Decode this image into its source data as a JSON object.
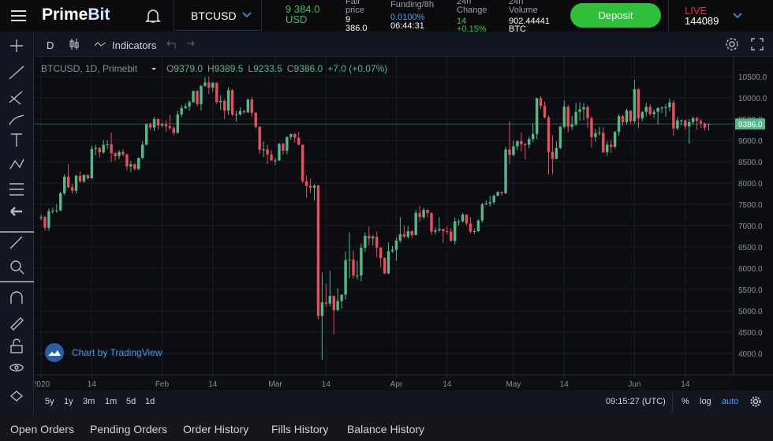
{
  "header": {
    "logo_a": "Prime",
    "logo_b": "Bit",
    "symbol": "BTCUSD",
    "last_price": "9 384.0",
    "last_price_unit": "USD",
    "fair_price_label": "Fair price",
    "fair_price": "9 386.0",
    "funding_label": "Funding/8h",
    "funding_rate": "0.0100%",
    "funding_countdown": "06:44:31",
    "change_label": "24h Change",
    "change": "14",
    "change_pct": "+0.15%",
    "volume_label": "24h Volume",
    "volume": "902.44441",
    "volume_unit": "BTC",
    "deposit": "Deposit",
    "live": "LIVE",
    "live_count": "144089"
  },
  "toolbar": {
    "interval": "D",
    "indicators": "Indicators"
  },
  "legend": {
    "symbol": "BTCUSD, 1D, Primebit",
    "o_label": "O",
    "o": "9379.0",
    "h_label": "H",
    "h": "9389.5",
    "l_label": "L",
    "l": "9233.5",
    "c_label": "C",
    "c": "9386.0",
    "change": "+7.0 (+0.07%)"
  },
  "watermark": "Chart by TradingView",
  "chart_data": {
    "type": "candlestick",
    "up_color": "#53b987",
    "down_color": "#eb4d5c",
    "grid": true,
    "ylim": [
      3500,
      10963
    ],
    "yticks": [
      {
        "value": 4000,
        "label": "4000.0"
      },
      {
        "value": 4500,
        "label": "4500.0"
      },
      {
        "value": 5000,
        "label": "5000.0"
      },
      {
        "value": 5500,
        "label": "5500.0"
      },
      {
        "value": 6000,
        "label": "6000.0"
      },
      {
        "value": 6500,
        "label": "6500.0"
      },
      {
        "value": 7000,
        "label": "7000.0"
      },
      {
        "value": 7500,
        "label": "7500.0"
      },
      {
        "value": 8000,
        "label": "8000.0"
      },
      {
        "value": 8500,
        "label": "8500.0"
      },
      {
        "value": 9000,
        "label": "9000.0"
      },
      {
        "value": 9500,
        "label": "9500.0"
      },
      {
        "value": 10000,
        "label": "10000.0"
      },
      {
        "value": 10500,
        "label": "10500.0"
      }
    ],
    "xticks": [
      {
        "value": 0,
        "label": "2020"
      },
      {
        "value": 13,
        "label": "14"
      },
      {
        "value": 31,
        "label": "Feb"
      },
      {
        "value": 44,
        "label": "14"
      },
      {
        "value": 60,
        "label": "Mar"
      },
      {
        "value": 73,
        "label": "14"
      },
      {
        "value": 91,
        "label": "Apr"
      },
      {
        "value": 104,
        "label": "14"
      },
      {
        "value": 121,
        "label": "May"
      },
      {
        "value": 134,
        "label": "14"
      },
      {
        "value": 152,
        "label": "Jun"
      },
      {
        "value": 165,
        "label": "14"
      }
    ],
    "last_price": {
      "value": 9386,
      "label": "9386.0"
    },
    "candles": [
      [
        7180,
        7260,
        7130,
        7200
      ],
      [
        7200,
        7230,
        6880,
        6950
      ],
      [
        6950,
        7400,
        6880,
        7340
      ],
      [
        7340,
        7420,
        7280,
        7350
      ],
      [
        7350,
        7500,
        7300,
        7360
      ],
      [
        7360,
        7800,
        7340,
        7760
      ],
      [
        7760,
        8200,
        7720,
        8150
      ],
      [
        8150,
        8450,
        7880,
        7900
      ],
      [
        7900,
        7980,
        7760,
        7820
      ],
      [
        7820,
        8200,
        7750,
        8170
      ],
      [
        8170,
        8270,
        8000,
        8040
      ],
      [
        8040,
        8200,
        8000,
        8190
      ],
      [
        8190,
        8200,
        8080,
        8110
      ],
      [
        8110,
        8880,
        8100,
        8800
      ],
      [
        8800,
        8900,
        8650,
        8820
      ],
      [
        8820,
        8850,
        8600,
        8720
      ],
      [
        8720,
        9000,
        8680,
        8900
      ],
      [
        8900,
        9000,
        8800,
        8910
      ],
      [
        8910,
        9180,
        8500,
        8700
      ],
      [
        8700,
        8730,
        8520,
        8630
      ],
      [
        8630,
        8770,
        8560,
        8730
      ],
      [
        8730,
        8800,
        8630,
        8670
      ],
      [
        8670,
        8690,
        8300,
        8390
      ],
      [
        8390,
        8520,
        8250,
        8440
      ],
      [
        8440,
        8460,
        8290,
        8330
      ],
      [
        8330,
        8600,
        8300,
        8590
      ],
      [
        8590,
        8980,
        8560,
        8900
      ],
      [
        8900,
        9400,
        8880,
        9380
      ],
      [
        9380,
        9420,
        9250,
        9300
      ],
      [
        9300,
        9550,
        9220,
        9500
      ],
      [
        9500,
        9520,
        9250,
        9350
      ],
      [
        9350,
        9420,
        9310,
        9380
      ],
      [
        9380,
        9470,
        9200,
        9330
      ],
      [
        9330,
        9600,
        9250,
        9290
      ],
      [
        9290,
        9340,
        9120,
        9180
      ],
      [
        9180,
        9700,
        9160,
        9610
      ],
      [
        9610,
        9830,
        9550,
        9760
      ],
      [
        9760,
        9870,
        9730,
        9800
      ],
      [
        9800,
        9940,
        9700,
        9900
      ],
      [
        9900,
        10160,
        9880,
        10160
      ],
      [
        10160,
        10180,
        9800,
        9850
      ],
      [
        9850,
        10300,
        9700,
        10280
      ],
      [
        10280,
        10480,
        10260,
        10360
      ],
      [
        10360,
        10500,
        10090,
        10240
      ],
      [
        10240,
        10380,
        10140,
        10350
      ],
      [
        10350,
        10380,
        9860,
        9900
      ],
      [
        9900,
        10060,
        9720,
        9930
      ],
      [
        9930,
        9970,
        9500,
        9700
      ],
      [
        9700,
        10250,
        9600,
        10180
      ],
      [
        10180,
        10200,
        9580,
        9600
      ],
      [
        9600,
        9700,
        9450,
        9610
      ],
      [
        9610,
        9780,
        9580,
        9690
      ],
      [
        9690,
        9710,
        9620,
        9660
      ],
      [
        9660,
        9980,
        9650,
        9960
      ],
      [
        9960,
        10020,
        9550,
        9650
      ],
      [
        9650,
        9660,
        9280,
        9320
      ],
      [
        9320,
        9330,
        8680,
        8780
      ],
      [
        8780,
        8970,
        8610,
        8790
      ],
      [
        8790,
        8900,
        8440,
        8670
      ],
      [
        8670,
        8770,
        8520,
        8530
      ],
      [
        8530,
        8590,
        8420,
        8530
      ],
      [
        8530,
        8940,
        8520,
        8920
      ],
      [
        8920,
        8950,
        8660,
        8760
      ],
      [
        8760,
        9090,
        8680,
        9080
      ],
      [
        9080,
        9160,
        9020,
        9150
      ],
      [
        9150,
        9180,
        8950,
        9060
      ],
      [
        9060,
        9200,
        8880,
        8900
      ],
      [
        8900,
        8900,
        8000,
        8040
      ],
      [
        8040,
        8180,
        7660,
        7930
      ],
      [
        7930,
        8100,
        7760,
        7890
      ],
      [
        7890,
        7980,
        7590,
        7940
      ],
      [
        7940,
        7960,
        4800,
        4880
      ],
      [
        4880,
        5900,
        3850,
        5200
      ],
      [
        5200,
        5640,
        5090,
        5170
      ],
      [
        5170,
        5940,
        5100,
        5350
      ],
      [
        5350,
        5360,
        4440,
        5020
      ],
      [
        5020,
        5530,
        4990,
        5230
      ],
      [
        5230,
        5390,
        5050,
        5380
      ],
      [
        5380,
        6390,
        5260,
        6190
      ],
      [
        6190,
        6840,
        5770,
        6200
      ],
      [
        6200,
        6420,
        5760,
        5830
      ],
      [
        5830,
        6180,
        5730,
        5830
      ],
      [
        5830,
        6580,
        5690,
        6480
      ],
      [
        6480,
        6840,
        6390,
        6760
      ],
      [
        6760,
        6980,
        6540,
        6700
      ],
      [
        6700,
        6780,
        6530,
        6740
      ],
      [
        6740,
        6860,
        6260,
        6480
      ],
      [
        6480,
        6500,
        6020,
        6240
      ],
      [
        6240,
        6260,
        5860,
        5880
      ],
      [
        5880,
        6600,
        5860,
        6400
      ],
      [
        6400,
        6520,
        6360,
        6430
      ],
      [
        6430,
        6720,
        6180,
        6650
      ],
      [
        6650,
        7200,
        6600,
        6800
      ],
      [
        6800,
        7000,
        6700,
        6740
      ],
      [
        6740,
        6990,
        6690,
        6870
      ],
      [
        6870,
        6890,
        6710,
        6780
      ],
      [
        6780,
        7370,
        6770,
        7300
      ],
      [
        7300,
        7460,
        7090,
        7200
      ],
      [
        7200,
        7420,
        7150,
        7370
      ],
      [
        7370,
        7380,
        7200,
        7300
      ],
      [
        7300,
        7310,
        6780,
        6860
      ],
      [
        6860,
        6950,
        6800,
        6890
      ],
      [
        6890,
        7200,
        6860,
        6920
      ],
      [
        6920,
        6930,
        6600,
        6870
      ],
      [
        6870,
        6990,
        6800,
        6860
      ],
      [
        6860,
        6940,
        6630,
        6640
      ],
      [
        6640,
        7190,
        6560,
        7100
      ],
      [
        7100,
        7150,
        7000,
        7100
      ],
      [
        7100,
        7300,
        7080,
        7260
      ],
      [
        7260,
        7260,
        7000,
        7050
      ],
      [
        7050,
        7200,
        6820,
        6860
      ],
      [
        6860,
        6920,
        6800,
        6870
      ],
      [
        6870,
        7150,
        6850,
        7120
      ],
      [
        7120,
        7540,
        7080,
        7500
      ],
      [
        7500,
        7600,
        7480,
        7520
      ],
      [
        7520,
        7700,
        7450,
        7550
      ],
      [
        7550,
        7730,
        7500,
        7700
      ],
      [
        7700,
        7800,
        7690,
        7790
      ],
      [
        7790,
        7800,
        7700,
        7760
      ],
      [
        7760,
        8850,
        7740,
        8790
      ],
      [
        8790,
        9450,
        8440,
        8660
      ],
      [
        8660,
        9000,
        8630,
        8860
      ],
      [
        8860,
        9000,
        8770,
        8980
      ],
      [
        8980,
        9180,
        8740,
        8910
      ],
      [
        8910,
        8950,
        8560,
        8900
      ],
      [
        8900,
        9090,
        8810,
        9030
      ],
      [
        9030,
        9400,
        8960,
        9150
      ],
      [
        9150,
        10000,
        9030,
        9990
      ],
      [
        9990,
        10040,
        9740,
        9810
      ],
      [
        9810,
        9910,
        9520,
        9540
      ],
      [
        9540,
        9580,
        8200,
        8730
      ],
      [
        8730,
        9130,
        8200,
        8570
      ],
      [
        8570,
        8980,
        8560,
        8820
      ],
      [
        8820,
        9350,
        8800,
        9320
      ],
      [
        9320,
        9940,
        9270,
        9790
      ],
      [
        9790,
        9840,
        9190,
        9320
      ],
      [
        9320,
        9580,
        9250,
        9380
      ],
      [
        9380,
        9880,
        9330,
        9670
      ],
      [
        9670,
        9900,
        9460,
        9730
      ],
      [
        9730,
        9880,
        9470,
        9780
      ],
      [
        9780,
        9830,
        9290,
        9520
      ],
      [
        9520,
        9560,
        8830,
        9080
      ],
      [
        9080,
        9270,
        8960,
        9170
      ],
      [
        9170,
        9320,
        9110,
        9180
      ],
      [
        9180,
        9310,
        8700,
        8720
      ],
      [
        8720,
        8980,
        8640,
        8900
      ],
      [
        8900,
        9010,
        8700,
        8850
      ],
      [
        8850,
        9220,
        8810,
        9200
      ],
      [
        9200,
        9620,
        9110,
        9570
      ],
      [
        9570,
        9610,
        9350,
        9430
      ],
      [
        9430,
        9740,
        9380,
        9700
      ],
      [
        9700,
        9700,
        9400,
        9450
      ],
      [
        9450,
        10420,
        9410,
        10200
      ],
      [
        10200,
        10230,
        9280,
        9520
      ],
      [
        9520,
        9690,
        9450,
        9670
      ],
      [
        9670,
        9880,
        9560,
        9790
      ],
      [
        9790,
        9860,
        9580,
        9620
      ],
      [
        9620,
        9730,
        9530,
        9670
      ],
      [
        9670,
        9790,
        9380,
        9760
      ],
      [
        9760,
        9800,
        9640,
        9770
      ],
      [
        9770,
        9850,
        9560,
        9780
      ],
      [
        9780,
        9980,
        9680,
        9890
      ],
      [
        9890,
        9950,
        9100,
        9280
      ],
      [
        9280,
        9550,
        9240,
        9470
      ],
      [
        9470,
        9490,
        9350,
        9470
      ],
      [
        9470,
        9480,
        9250,
        9330
      ],
      [
        9330,
        9500,
        8920,
        9430
      ],
      [
        9430,
        9560,
        9370,
        9520
      ],
      [
        9520,
        9560,
        9250,
        9460
      ],
      [
        9460,
        9490,
        9290,
        9400
      ],
      [
        9400,
        9420,
        9230,
        9300
      ],
      [
        9379,
        9389.5,
        9233.5,
        9386
      ]
    ]
  },
  "ranges": [
    "5y",
    "1y",
    "3m",
    "1m",
    "5d",
    "1d"
  ],
  "clock": "09:15:27 (UTC)",
  "scale_options": [
    "%",
    "log",
    "auto"
  ],
  "tabs": [
    "Open Orders",
    "Pending Orders",
    "Order History",
    "Fills History",
    "Balance History"
  ]
}
